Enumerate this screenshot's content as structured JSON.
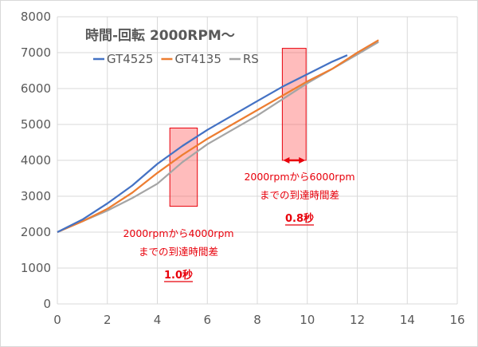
{
  "chart_data": {
    "type": "line",
    "title": "時間-回転 2000RPM～",
    "xlabel": "",
    "ylabel": "",
    "xlim": [
      0,
      16
    ],
    "ylim": [
      0,
      8000
    ],
    "x_ticks": [
      0,
      2,
      4,
      6,
      8,
      10,
      12,
      14,
      16
    ],
    "y_ticks": [
      0,
      1000,
      2000,
      3000,
      4000,
      5000,
      6000,
      7000,
      8000
    ],
    "grid": true,
    "legend_position": "top-left",
    "series": [
      {
        "name": "GT4525",
        "color": "#4472c4",
        "x": [
          0,
          1,
          2,
          3,
          4,
          5,
          6,
          7,
          8,
          9,
          10,
          11,
          11.6
        ],
        "y": [
          2000,
          2350,
          2800,
          3300,
          3900,
          4400,
          4850,
          5250,
          5650,
          6050,
          6400,
          6750,
          6930
        ]
      },
      {
        "name": "GT4135",
        "color": "#ed7d31",
        "x": [
          0,
          1,
          2,
          3,
          4,
          5,
          6,
          7,
          8,
          9,
          10,
          11,
          12,
          12.85
        ],
        "y": [
          2000,
          2300,
          2650,
          3100,
          3650,
          4150,
          4600,
          5000,
          5400,
          5800,
          6200,
          6550,
          7000,
          7350
        ]
      },
      {
        "name": "RS",
        "color": "#a5a5a5",
        "x": [
          0,
          1,
          2,
          3,
          4,
          5,
          6,
          7,
          8,
          9,
          10,
          11,
          12,
          12.85
        ],
        "y": [
          2000,
          2300,
          2600,
          2950,
          3350,
          3950,
          4450,
          4850,
          5250,
          5700,
          6150,
          6550,
          6950,
          7300
        ]
      }
    ],
    "annotations": [
      {
        "id": "box1",
        "x_range": [
          4.5,
          5.6
        ],
        "y_range": [
          2720,
          4900
        ],
        "lines": [
          "2000rpmから4000rpm",
          "までの到達時間差"
        ],
        "value": "1.0秒"
      },
      {
        "id": "box2",
        "x_range": [
          9.0,
          9.95
        ],
        "y_range": [
          4000,
          7120
        ],
        "lines": [
          "2000rpmから6000rpm",
          "までの到達時間差"
        ],
        "value": "0.8秒"
      }
    ]
  }
}
